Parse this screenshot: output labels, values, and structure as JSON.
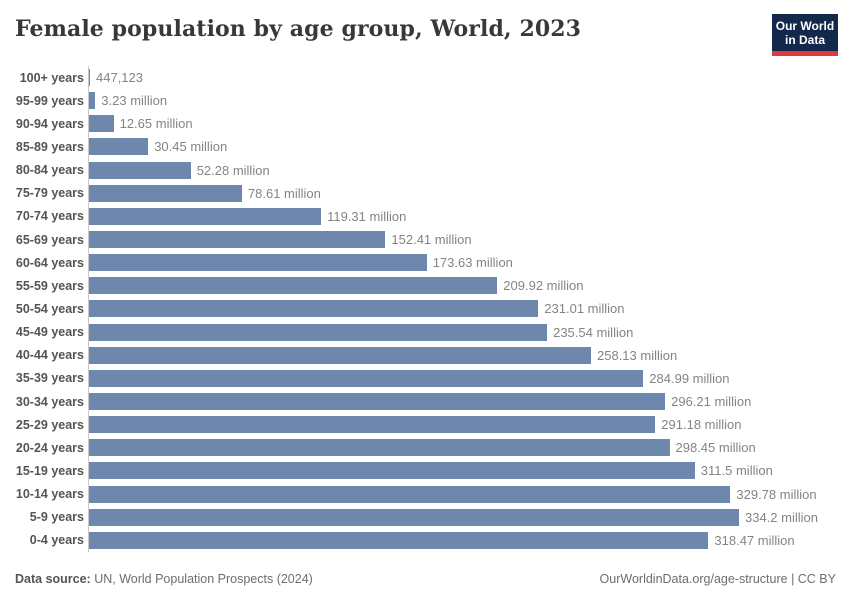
{
  "header": {
    "title": "Female population by age group, World, 2023",
    "logo": {
      "line1": "Our World",
      "line2": "in Data"
    }
  },
  "chart_data": {
    "type": "bar",
    "orientation": "horizontal",
    "title": "Female population by age group, World, 2023",
    "xlabel": "",
    "ylabel": "",
    "xlim": [
      0,
      334.2
    ],
    "unit": "million people",
    "grid": false,
    "legend": "none",
    "value_label_position": "end-of-bar",
    "bar_color": "#6e87ad",
    "axis_line_color": "#c9c9c9",
    "categories": [
      "100+ years",
      "95-99 years",
      "90-94 years",
      "85-89 years",
      "80-84 years",
      "75-79 years",
      "70-74 years",
      "65-69 years",
      "60-64 years",
      "55-59 years",
      "50-54 years",
      "45-49 years",
      "40-44 years",
      "35-39 years",
      "30-34 years",
      "25-29 years",
      "20-24 years",
      "15-19 years",
      "10-14 years",
      "5-9 years",
      "0-4 years"
    ],
    "values": [
      0.447123,
      3.23,
      12.65,
      30.45,
      52.28,
      78.61,
      119.31,
      152.41,
      173.63,
      209.92,
      231.01,
      235.54,
      258.13,
      284.99,
      296.21,
      291.18,
      298.45,
      311.5,
      329.78,
      334.2,
      318.47
    ],
    "value_labels": [
      "447,123",
      "3.23 million",
      "12.65 million",
      "30.45 million",
      "52.28 million",
      "78.61 million",
      "119.31 million",
      "152.41 million",
      "173.63 million",
      "209.92 million",
      "231.01 million",
      "235.54 million",
      "258.13 million",
      "284.99 million",
      "296.21 million",
      "291.18 million",
      "298.45 million",
      "311.5 million",
      "329.78 million",
      "334.2 million",
      "318.47 million"
    ]
  },
  "footer": {
    "source_label": "Data source:",
    "source_text": " UN, World Population Prospects (2024)",
    "attribution": "OurWorldinData.org/age-structure | CC BY"
  }
}
